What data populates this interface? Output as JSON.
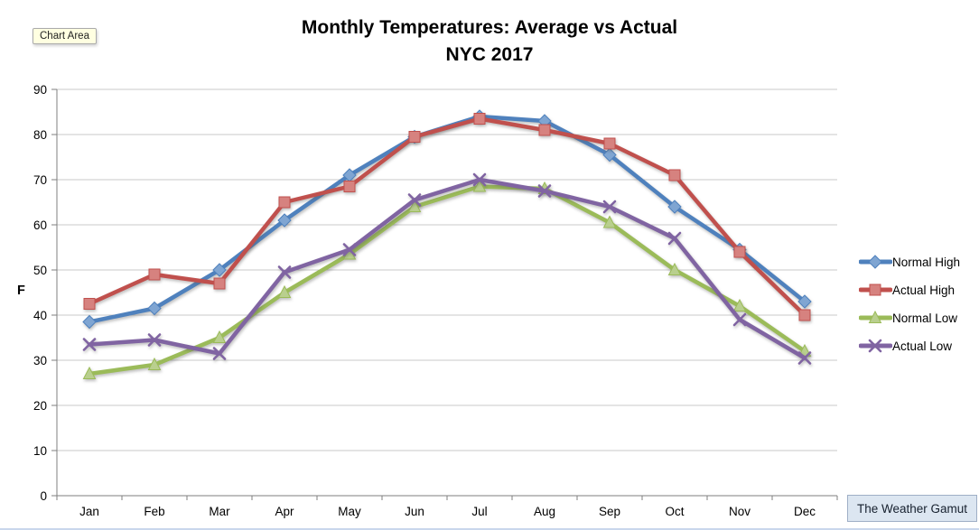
{
  "title": {
    "line1": "Monthly Temperatures: Average vs Actual",
    "line2": "NYC 2017"
  },
  "chart_area": {
    "label": "Chart Area"
  },
  "watermark": {
    "label": "The Weather Gamut"
  },
  "chart_data": {
    "type": "line",
    "title": "Monthly Temperatures: Average vs Actual — NYC 2017",
    "categories": [
      "Jan",
      "Feb",
      "Mar",
      "Apr",
      "May",
      "Jun",
      "Jul",
      "Aug",
      "Sep",
      "Oct",
      "Nov",
      "Dec"
    ],
    "series": [
      {
        "name": "Normal High",
        "marker": "diamond",
        "color": "#4F81BD",
        "fill": "#7FA5D2",
        "values": [
          38.5,
          41.5,
          50,
          61,
          71,
          79.5,
          84,
          83,
          75.5,
          64,
          54.5,
          43
        ]
      },
      {
        "name": "Actual High",
        "marker": "square",
        "color": "#C0504D",
        "fill": "#D6827F",
        "values": [
          42.5,
          49,
          47,
          65,
          68.5,
          79.5,
          83.5,
          81,
          78,
          71,
          54,
          40
        ]
      },
      {
        "name": "Normal Low",
        "marker": "triangle",
        "color": "#9BBB59",
        "fill": "#B9CF8E",
        "values": [
          27,
          29,
          35,
          45,
          53.5,
          64,
          68.5,
          68,
          60.5,
          50,
          42,
          32
        ]
      },
      {
        "name": "Actual Low",
        "marker": "x",
        "color": "#8064A2",
        "fill": "#9F8BBF",
        "values": [
          33.5,
          34.5,
          31.5,
          49.5,
          54.5,
          65.5,
          70,
          67.5,
          64,
          57,
          39,
          30.5
        ]
      }
    ],
    "xlabel": "",
    "ylabel": "F",
    "ylim": [
      0,
      90
    ],
    "ytick_step": 10,
    "grid": true,
    "legend_position": "right"
  }
}
